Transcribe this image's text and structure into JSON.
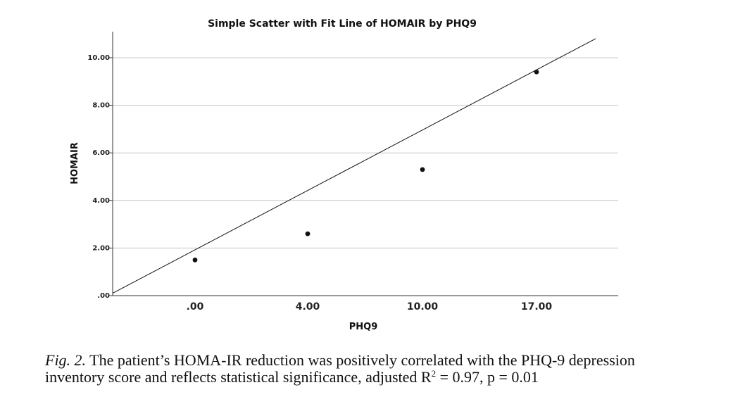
{
  "chart_data": {
    "type": "scatter",
    "title": "Simple Scatter with Fit Line of HOMAIR by PHQ9",
    "xlabel": "PHQ9",
    "ylabel": "HOMAIR",
    "x_tick_labels": [
      ".00",
      "4.00",
      "10.00",
      "17.00"
    ],
    "y_ticks": [
      0,
      2,
      4,
      6,
      8,
      10
    ],
    "y_tick_labels": [
      ".00",
      "2.00",
      "4.00",
      "6.00",
      "8.00",
      "10.00"
    ],
    "ylim": [
      0,
      10.5
    ],
    "grid": "horizontal",
    "points": [
      {
        "x": ".00",
        "y": 1.5
      },
      {
        "x": "4.00",
        "y": 2.6
      },
      {
        "x": "10.00",
        "y": 5.3
      },
      {
        "x": "17.00",
        "y": 9.4
      }
    ],
    "fit_line": {
      "y_at_axis_start": 0.1,
      "y_at_axis_end": 10.8
    }
  },
  "caption": {
    "fig_label": "Fig. 2.",
    "line1": "The patient’s HOMA-IR reduction was positively correlated with the PHQ-9 depression",
    "line2_a": "inventory score and reflects statistical significance, adjusted R",
    "line2_sup": "2",
    "line2_b": " = 0.97, p = 0.01"
  }
}
